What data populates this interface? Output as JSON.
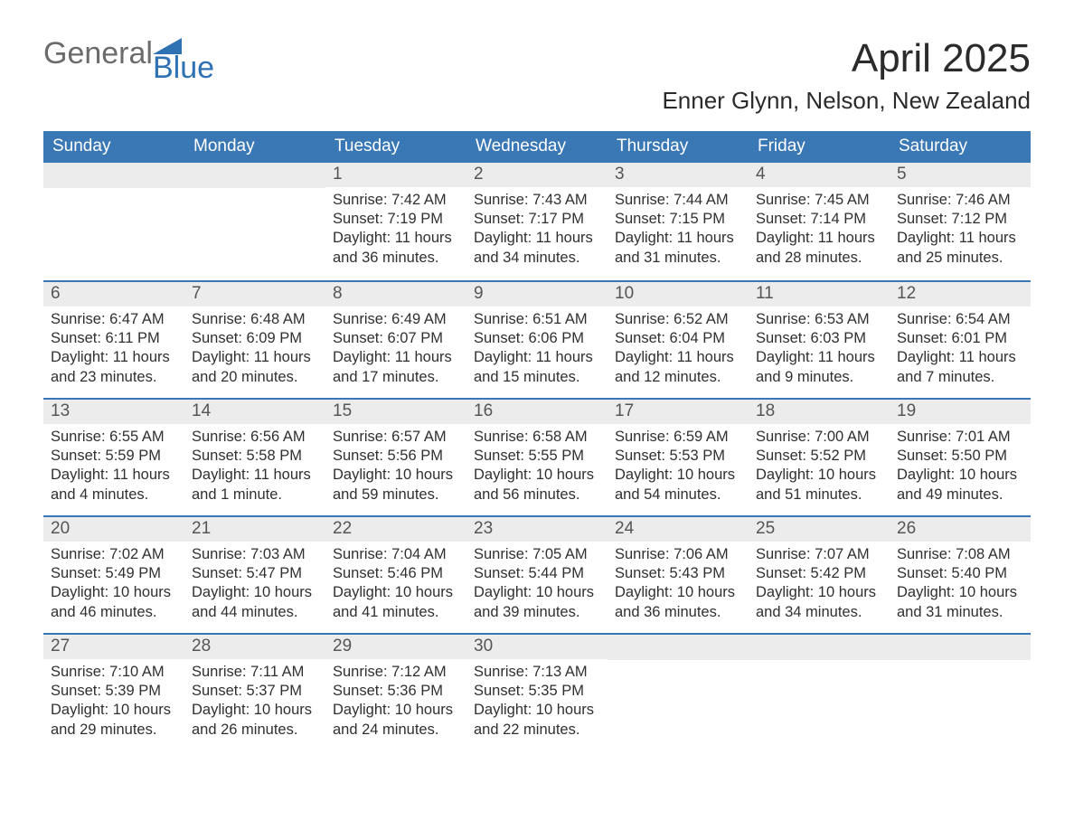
{
  "logo": {
    "part1": "General",
    "part2": "Blue"
  },
  "title": "April 2025",
  "location": "Enner Glynn, Nelson, New Zealand",
  "styling": {
    "header_bg": "#3a78b5",
    "header_text": "#ffffff",
    "row_accent": "#3a78b5",
    "daynum_bg": "#ececec",
    "daynum_text": "#555555",
    "body_text": "#303030",
    "page_bg": "#ffffff",
    "logo_gray": "#6b6b6b",
    "logo_blue": "#2f72b4",
    "title_fontsize_pt": 33,
    "location_fontsize_pt": 20,
    "dow_fontsize_pt": 14,
    "daynum_fontsize_pt": 14,
    "body_fontsize_pt": 12,
    "columns": 7,
    "rows": 5
  },
  "days_of_week": [
    "Sunday",
    "Monday",
    "Tuesday",
    "Wednesday",
    "Thursday",
    "Friday",
    "Saturday"
  ],
  "weeks": [
    [
      {
        "n": "",
        "sunrise": "",
        "sunset": "",
        "daylight": ""
      },
      {
        "n": "",
        "sunrise": "",
        "sunset": "",
        "daylight": ""
      },
      {
        "n": "1",
        "sunrise": "Sunrise: 7:42 AM",
        "sunset": "Sunset: 7:19 PM",
        "daylight": "Daylight: 11 hours and 36 minutes."
      },
      {
        "n": "2",
        "sunrise": "Sunrise: 7:43 AM",
        "sunset": "Sunset: 7:17 PM",
        "daylight": "Daylight: 11 hours and 34 minutes."
      },
      {
        "n": "3",
        "sunrise": "Sunrise: 7:44 AM",
        "sunset": "Sunset: 7:15 PM",
        "daylight": "Daylight: 11 hours and 31 minutes."
      },
      {
        "n": "4",
        "sunrise": "Sunrise: 7:45 AM",
        "sunset": "Sunset: 7:14 PM",
        "daylight": "Daylight: 11 hours and 28 minutes."
      },
      {
        "n": "5",
        "sunrise": "Sunrise: 7:46 AM",
        "sunset": "Sunset: 7:12 PM",
        "daylight": "Daylight: 11 hours and 25 minutes."
      }
    ],
    [
      {
        "n": "6",
        "sunrise": "Sunrise: 6:47 AM",
        "sunset": "Sunset: 6:11 PM",
        "daylight": "Daylight: 11 hours and 23 minutes."
      },
      {
        "n": "7",
        "sunrise": "Sunrise: 6:48 AM",
        "sunset": "Sunset: 6:09 PM",
        "daylight": "Daylight: 11 hours and 20 minutes."
      },
      {
        "n": "8",
        "sunrise": "Sunrise: 6:49 AM",
        "sunset": "Sunset: 6:07 PM",
        "daylight": "Daylight: 11 hours and 17 minutes."
      },
      {
        "n": "9",
        "sunrise": "Sunrise: 6:51 AM",
        "sunset": "Sunset: 6:06 PM",
        "daylight": "Daylight: 11 hours and 15 minutes."
      },
      {
        "n": "10",
        "sunrise": "Sunrise: 6:52 AM",
        "sunset": "Sunset: 6:04 PM",
        "daylight": "Daylight: 11 hours and 12 minutes."
      },
      {
        "n": "11",
        "sunrise": "Sunrise: 6:53 AM",
        "sunset": "Sunset: 6:03 PM",
        "daylight": "Daylight: 11 hours and 9 minutes."
      },
      {
        "n": "12",
        "sunrise": "Sunrise: 6:54 AM",
        "sunset": "Sunset: 6:01 PM",
        "daylight": "Daylight: 11 hours and 7 minutes."
      }
    ],
    [
      {
        "n": "13",
        "sunrise": "Sunrise: 6:55 AM",
        "sunset": "Sunset: 5:59 PM",
        "daylight": "Daylight: 11 hours and 4 minutes."
      },
      {
        "n": "14",
        "sunrise": "Sunrise: 6:56 AM",
        "sunset": "Sunset: 5:58 PM",
        "daylight": "Daylight: 11 hours and 1 minute."
      },
      {
        "n": "15",
        "sunrise": "Sunrise: 6:57 AM",
        "sunset": "Sunset: 5:56 PM",
        "daylight": "Daylight: 10 hours and 59 minutes."
      },
      {
        "n": "16",
        "sunrise": "Sunrise: 6:58 AM",
        "sunset": "Sunset: 5:55 PM",
        "daylight": "Daylight: 10 hours and 56 minutes."
      },
      {
        "n": "17",
        "sunrise": "Sunrise: 6:59 AM",
        "sunset": "Sunset: 5:53 PM",
        "daylight": "Daylight: 10 hours and 54 minutes."
      },
      {
        "n": "18",
        "sunrise": "Sunrise: 7:00 AM",
        "sunset": "Sunset: 5:52 PM",
        "daylight": "Daylight: 10 hours and 51 minutes."
      },
      {
        "n": "19",
        "sunrise": "Sunrise: 7:01 AM",
        "sunset": "Sunset: 5:50 PM",
        "daylight": "Daylight: 10 hours and 49 minutes."
      }
    ],
    [
      {
        "n": "20",
        "sunrise": "Sunrise: 7:02 AM",
        "sunset": "Sunset: 5:49 PM",
        "daylight": "Daylight: 10 hours and 46 minutes."
      },
      {
        "n": "21",
        "sunrise": "Sunrise: 7:03 AM",
        "sunset": "Sunset: 5:47 PM",
        "daylight": "Daylight: 10 hours and 44 minutes."
      },
      {
        "n": "22",
        "sunrise": "Sunrise: 7:04 AM",
        "sunset": "Sunset: 5:46 PM",
        "daylight": "Daylight: 10 hours and 41 minutes."
      },
      {
        "n": "23",
        "sunrise": "Sunrise: 7:05 AM",
        "sunset": "Sunset: 5:44 PM",
        "daylight": "Daylight: 10 hours and 39 minutes."
      },
      {
        "n": "24",
        "sunrise": "Sunrise: 7:06 AM",
        "sunset": "Sunset: 5:43 PM",
        "daylight": "Daylight: 10 hours and 36 minutes."
      },
      {
        "n": "25",
        "sunrise": "Sunrise: 7:07 AM",
        "sunset": "Sunset: 5:42 PM",
        "daylight": "Daylight: 10 hours and 34 minutes."
      },
      {
        "n": "26",
        "sunrise": "Sunrise: 7:08 AM",
        "sunset": "Sunset: 5:40 PM",
        "daylight": "Daylight: 10 hours and 31 minutes."
      }
    ],
    [
      {
        "n": "27",
        "sunrise": "Sunrise: 7:10 AM",
        "sunset": "Sunset: 5:39 PM",
        "daylight": "Daylight: 10 hours and 29 minutes."
      },
      {
        "n": "28",
        "sunrise": "Sunrise: 7:11 AM",
        "sunset": "Sunset: 5:37 PM",
        "daylight": "Daylight: 10 hours and 26 minutes."
      },
      {
        "n": "29",
        "sunrise": "Sunrise: 7:12 AM",
        "sunset": "Sunset: 5:36 PM",
        "daylight": "Daylight: 10 hours and 24 minutes."
      },
      {
        "n": "30",
        "sunrise": "Sunrise: 7:13 AM",
        "sunset": "Sunset: 5:35 PM",
        "daylight": "Daylight: 10 hours and 22 minutes."
      },
      {
        "n": "",
        "sunrise": "",
        "sunset": "",
        "daylight": ""
      },
      {
        "n": "",
        "sunrise": "",
        "sunset": "",
        "daylight": ""
      },
      {
        "n": "",
        "sunrise": "",
        "sunset": "",
        "daylight": ""
      }
    ]
  ]
}
